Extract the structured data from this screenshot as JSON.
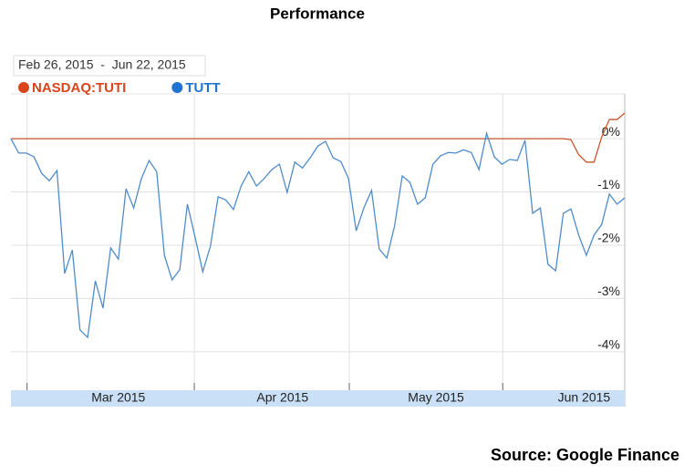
{
  "chart_data": {
    "type": "line",
    "title": "Performance",
    "date_range": "Feb 26, 2015  -  Jun 22, 2015",
    "source": "Source: Google Finance",
    "xlim": [
      0,
      80
    ],
    "xticks": [
      {
        "value": 14.0,
        "label": "Mar 2015"
      },
      {
        "value": 35.4,
        "label": "Apr 2015"
      },
      {
        "value": 55.4,
        "label": "May 2015"
      },
      {
        "value": 74.7,
        "label": "Jun 2015"
      }
    ],
    "xgrid": [
      2.1,
      23.9,
      44.1,
      64.1
    ],
    "ylim": [
      -4.67,
      0.84
    ],
    "yticks": [
      {
        "value": 0,
        "label": "0%"
      },
      {
        "value": -1,
        "label": "-1%"
      },
      {
        "value": -2,
        "label": "-2%"
      },
      {
        "value": -3,
        "label": "-3%"
      },
      {
        "value": -4,
        "label": "-4%"
      }
    ],
    "grid": true,
    "series": [
      {
        "name": "NASDAQ:TUTI",
        "color": "#c9542c",
        "legend_color": "#d9441a",
        "values": [
          0,
          0,
          0,
          0,
          0,
          0,
          0,
          0,
          0,
          0,
          0,
          0,
          0,
          0,
          0,
          0,
          0,
          0,
          0,
          0,
          0,
          0,
          0,
          0,
          0,
          0,
          0,
          0,
          0,
          0,
          0,
          0,
          0,
          0,
          0,
          0,
          0,
          0,
          0,
          0,
          0,
          0,
          0,
          0,
          0,
          0,
          0,
          0,
          0,
          0,
          0,
          0,
          0,
          0,
          0,
          0,
          0,
          0,
          0,
          0,
          0,
          0,
          0,
          0,
          0,
          0,
          0,
          0,
          0,
          0,
          0,
          0,
          0,
          -0.02,
          -0.3,
          -0.44,
          -0.44,
          0.03,
          0.36,
          0.36,
          0.48
        ]
      },
      {
        "name": "TUTT",
        "color": "#4f8cc9",
        "legend_color": "#1f74d3",
        "values": [
          0,
          -0.27,
          -0.27,
          -0.34,
          -0.65,
          -0.79,
          -0.6,
          -2.53,
          -2.09,
          -3.59,
          -3.73,
          -2.67,
          -3.18,
          -2.05,
          -2.26,
          -0.94,
          -1.3,
          -0.75,
          -0.41,
          -0.62,
          -2.19,
          -2.65,
          -2.46,
          -1.23,
          -1.85,
          -2.5,
          -2.02,
          -1.09,
          -1.15,
          -1.33,
          -0.89,
          -0.62,
          -0.89,
          -0.75,
          -0.58,
          -0.48,
          -1.01,
          -0.44,
          -0.55,
          -0.36,
          -0.14,
          -0.05,
          -0.36,
          -0.43,
          -0.75,
          -1.73,
          -1.3,
          -0.97,
          -2.07,
          -2.24,
          -1.64,
          -0.7,
          -0.82,
          -1.23,
          -1.11,
          -0.48,
          -0.32,
          -0.26,
          -0.27,
          -0.21,
          -0.26,
          -0.58,
          0.1,
          -0.34,
          -0.48,
          -0.39,
          -0.41,
          -0.03,
          -1.4,
          -1.3,
          -2.36,
          -2.48,
          -1.4,
          -1.32,
          -1.81,
          -2.19,
          -1.81,
          -1.61,
          -1.04,
          -1.23,
          -1.11
        ]
      }
    ]
  }
}
